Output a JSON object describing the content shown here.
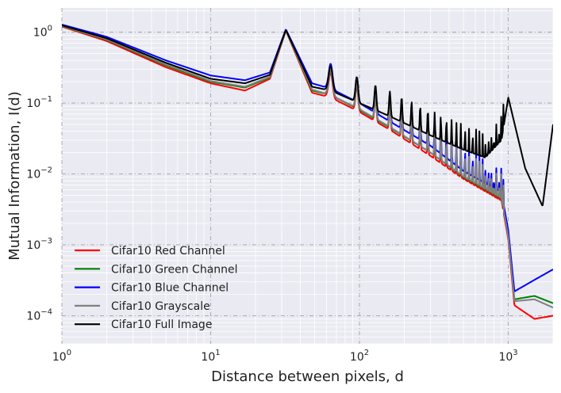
{
  "chart_data": {
    "type": "line",
    "title": "",
    "xlabel": "Distance between pixels, d",
    "ylabel": "Mutual Information, I(d)",
    "xscale": "log",
    "yscale": "log",
    "xlim": [
      1,
      2000
    ],
    "ylim": [
      4e-05,
      2.2
    ],
    "grid": true,
    "legend_position": "lower-left",
    "x_ticks": [
      {
        "value": 1,
        "base": "10",
        "exp": "0"
      },
      {
        "value": 10,
        "base": "10",
        "exp": "1"
      },
      {
        "value": 100,
        "base": "10",
        "exp": "2"
      },
      {
        "value": 1000,
        "base": "10",
        "exp": "3"
      }
    ],
    "y_ticks": [
      {
        "value": 0.0001,
        "base": "10",
        "exp": "−4"
      },
      {
        "value": 0.001,
        "base": "10",
        "exp": "−3"
      },
      {
        "value": 0.01,
        "base": "10",
        "exp": "−2"
      },
      {
        "value": 0.1,
        "base": "10",
        "exp": "−1"
      },
      {
        "value": 1,
        "base": "10",
        "exp": "0"
      }
    ],
    "series": [
      {
        "name": "Cifar10 Red Channel",
        "color": "#ff0000",
        "x": [
          1,
          2,
          5,
          10,
          17,
          25,
          32,
          48,
          64,
          100,
          160,
          300,
          500,
          900,
          1000,
          1100,
          1500,
          2000
        ],
        "y": [
          1.2,
          0.75,
          0.32,
          0.19,
          0.15,
          0.22,
          1.05,
          0.14,
          0.12,
          0.075,
          0.042,
          0.018,
          0.0085,
          0.0042,
          0.0012,
          0.00014,
          9e-05,
          0.0001
        ]
      },
      {
        "name": "Cifar10 Green Channel",
        "color": "#008000",
        "x": [
          1,
          2,
          5,
          10,
          17,
          25,
          32,
          48,
          64,
          100,
          160,
          300,
          500,
          900,
          1000,
          1100,
          1500,
          2000
        ],
        "y": [
          1.22,
          0.78,
          0.34,
          0.2,
          0.165,
          0.23,
          1.06,
          0.15,
          0.13,
          0.08,
          0.045,
          0.02,
          0.009,
          0.0045,
          0.0013,
          0.00017,
          0.00019,
          0.00015
        ]
      },
      {
        "name": "Cifar10 Blue Channel",
        "color": "#0000ff",
        "x": [
          1,
          2,
          5,
          10,
          17,
          25,
          32,
          48,
          64,
          100,
          160,
          300,
          500,
          900,
          1000,
          1100,
          1500,
          2000
        ],
        "y": [
          1.28,
          0.86,
          0.4,
          0.245,
          0.21,
          0.27,
          1.1,
          0.19,
          0.16,
          0.1,
          0.055,
          0.025,
          0.011,
          0.0055,
          0.0016,
          0.00022,
          0.00032,
          0.00045
        ]
      },
      {
        "name": "Cifar10 Grayscale",
        "color": "#808080",
        "x": [
          1,
          2,
          5,
          10,
          17,
          25,
          32,
          48,
          64,
          100,
          160,
          300,
          500,
          900,
          1000,
          1100,
          1500,
          2000
        ],
        "y": [
          1.23,
          0.79,
          0.35,
          0.205,
          0.17,
          0.235,
          1.06,
          0.155,
          0.13,
          0.082,
          0.046,
          0.02,
          0.0092,
          0.0046,
          0.0013,
          0.00016,
          0.00017,
          0.00013
        ]
      },
      {
        "name": "Cifar10 Full Image",
        "color": "#000000",
        "x": [
          1,
          2,
          5,
          10,
          17,
          25,
          32,
          48,
          64,
          100,
          160,
          300,
          500,
          700,
          900,
          1000,
          1300,
          1700,
          2000
        ],
        "y": [
          1.25,
          0.82,
          0.37,
          0.22,
          0.19,
          0.25,
          1.08,
          0.17,
          0.15,
          0.1,
          0.065,
          0.035,
          0.022,
          0.017,
          0.03,
          0.12,
          0.012,
          0.0035,
          0.05
        ]
      }
    ]
  }
}
